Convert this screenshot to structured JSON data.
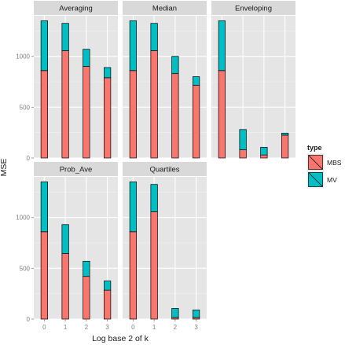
{
  "chart_data": {
    "type": "bar",
    "stacked": true,
    "xlabel": "Log base 2 of k",
    "ylabel": "MSE",
    "categories": [
      "0",
      "1",
      "2",
      "3"
    ],
    "ylim": [
      0,
      1400
    ],
    "yticks": [
      0,
      500,
      1000
    ],
    "grid": true,
    "legend": {
      "title": "type",
      "position": "right",
      "entries": [
        {
          "name": "MBS",
          "color": "#F8766D"
        },
        {
          "name": "MV",
          "color": "#00BFC4"
        }
      ]
    },
    "panels": [
      {
        "title": "Averaging",
        "series": [
          {
            "name": "MBS",
            "values": [
              860,
              1055,
              900,
              790
            ]
          },
          {
            "name": "MV",
            "values": [
              490,
              270,
              170,
              100
            ]
          }
        ]
      },
      {
        "title": "Median",
        "series": [
          {
            "name": "MBS",
            "values": [
              860,
              1055,
              830,
              715
            ]
          },
          {
            "name": "MV",
            "values": [
              490,
              270,
              170,
              85
            ]
          }
        ]
      },
      {
        "title": "Enveloping",
        "series": [
          {
            "name": "MBS",
            "values": [
              860,
              80,
              30,
              225
            ]
          },
          {
            "name": "MV",
            "values": [
              490,
              200,
              75,
              20
            ]
          }
        ]
      },
      {
        "title": "Prob_Ave",
        "series": [
          {
            "name": "MBS",
            "values": [
              860,
              645,
              420,
              285
            ]
          },
          {
            "name": "MV",
            "values": [
              490,
              285,
              150,
              90
            ]
          }
        ]
      },
      {
        "title": "Quartiles",
        "series": [
          {
            "name": "MBS",
            "values": [
              860,
              1055,
              15,
              15
            ]
          },
          {
            "name": "MV",
            "values": [
              490,
              270,
              90,
              75
            ]
          }
        ]
      }
    ]
  }
}
